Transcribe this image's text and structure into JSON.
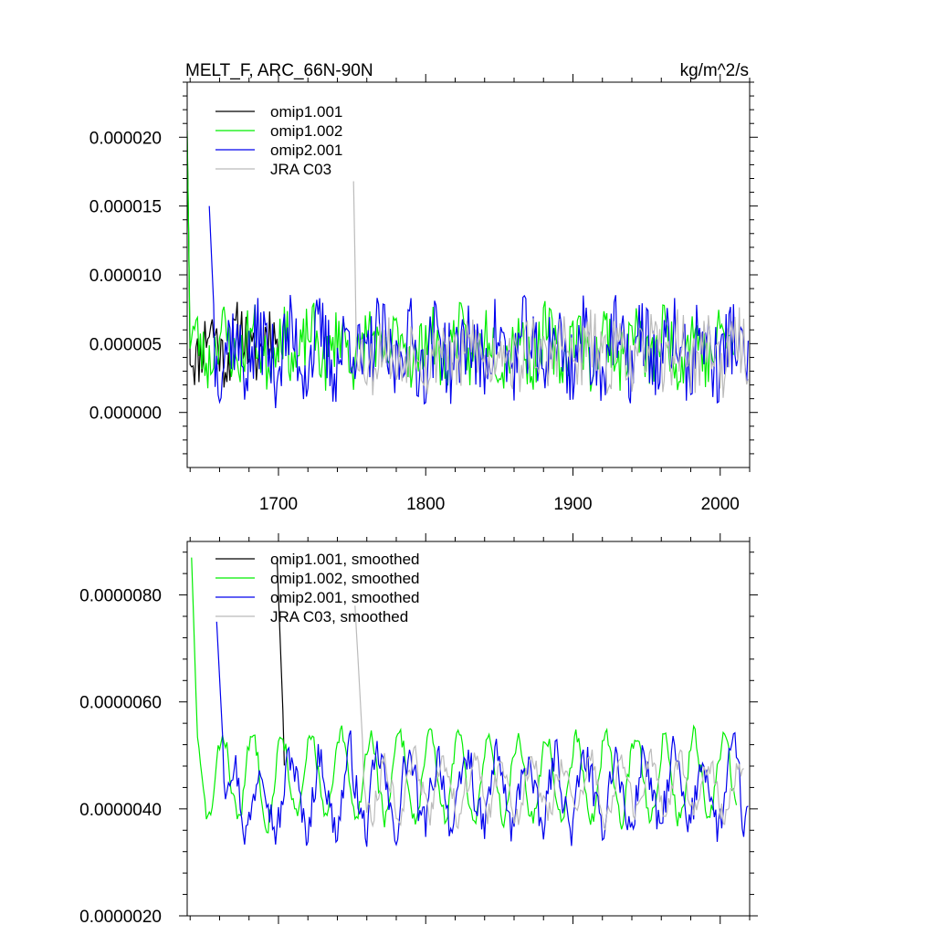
{
  "title_left": "MELT_F, ARC_66N-90N",
  "title_right": "kg/m^2/s",
  "colors": {
    "omip1_001": "#000000",
    "omip1_002": "#00ee00",
    "omip2_001": "#0000ee",
    "jra_c03": "#bbbbbb"
  },
  "chart_data": [
    {
      "type": "line",
      "title": "MELT_F, ARC_66N-90N",
      "units": "kg/m^2/s",
      "xlim": [
        1638,
        2020
      ],
      "ylim": [
        -4e-06,
        2.4e-05
      ],
      "x_ticks": [
        1700,
        1800,
        1900,
        2000
      ],
      "x_tick_labels": [
        "1700",
        "1800",
        "1900",
        "2000"
      ],
      "y_ticks": [
        0.0,
        5e-06,
        1e-05,
        1.5e-05,
        2e-05
      ],
      "y_tick_labels": [
        "0.000000",
        "0.000005",
        "0.000010",
        "0.000015",
        "0.000020"
      ],
      "legend_position": "top-left",
      "series": [
        {
          "name": "omip1.001",
          "color_key": "omip1_001",
          "x_start": 1638,
          "x_end": 1700,
          "initial_y": 2e-05,
          "initial_span": 2,
          "mean": 5e-06,
          "amp": 1.2e-06,
          "noise": 2.2e-06,
          "seed": 11
        },
        {
          "name": "omip1.002",
          "color_key": "omip1_002",
          "x_start": 1638,
          "x_end": 2009,
          "initial_y": 2.05e-05,
          "initial_span": 2,
          "mean": 4.8e-06,
          "amp": 1.2e-06,
          "noise": 2.2e-06,
          "seed": 23
        },
        {
          "name": "omip2.001",
          "color_key": "omip2_001",
          "x_start": 1653,
          "x_end": 2019,
          "initial_y": 1.5e-05,
          "initial_span": 4,
          "mean": 4.5e-06,
          "amp": 1.2e-06,
          "noise": 3e-06,
          "seed": 37
        },
        {
          "name": "JRA C03",
          "color_key": "jra_c03",
          "x_start": 1751,
          "x_end": 2019,
          "initial_y": 1.68e-05,
          "initial_span": 2,
          "mean": 4.3e-06,
          "amp": 1e-06,
          "noise": 2.4e-06,
          "seed": 53
        }
      ]
    },
    {
      "type": "line",
      "title": "",
      "xlim": [
        1638,
        2020
      ],
      "ylim": [
        2e-06,
        9e-06
      ],
      "x_ticks": [
        1700,
        1800,
        1900,
        2000
      ],
      "x_tick_labels": [],
      "y_ticks": [
        2e-06,
        4e-06,
        6e-06,
        8e-06
      ],
      "y_tick_labels": [
        "0.0000020",
        "0.0000040",
        "0.0000060",
        "0.0000080"
      ],
      "legend_position": "top-left",
      "series": [
        {
          "name": "omip1.001, smoothed",
          "color_key": "omip1_001",
          "x_start": 1699,
          "x_end": 1704,
          "initial_y": 8.7e-06,
          "initial_span": 5,
          "mean": 4.8e-06,
          "amp": 4e-07,
          "noise": 3e-07,
          "seed": 71
        },
        {
          "name": "omip1.002, smoothed",
          "color_key": "omip1_002",
          "x_start": 1641,
          "x_end": 2011,
          "initial_y": 8.7e-06,
          "initial_span": 4,
          "mean": 4.6e-06,
          "amp": 8e-07,
          "noise": 3e-07,
          "seed": 83
        },
        {
          "name": "omip2.001, smoothed",
          "color_key": "omip2_001",
          "x_start": 1658,
          "x_end": 2019,
          "initial_y": 7.5e-06,
          "initial_span": 5,
          "mean": 4.3e-06,
          "amp": 7e-07,
          "noise": 6e-07,
          "seed": 97
        },
        {
          "name": "JRA C03, smoothed",
          "color_key": "jra_c03",
          "x_start": 1752,
          "x_end": 2016,
          "initial_y": 7.8e-06,
          "initial_span": 6,
          "mean": 4.4e-06,
          "amp": 5e-07,
          "noise": 4e-07,
          "seed": 113
        }
      ]
    }
  ]
}
